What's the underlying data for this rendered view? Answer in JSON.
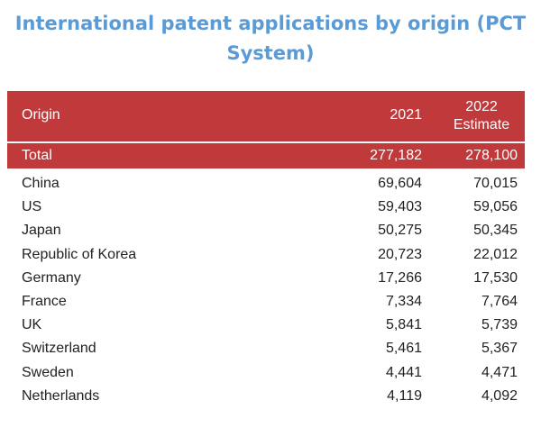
{
  "title": {
    "line1": "International patent applications by origin (PCT",
    "line2": "System)"
  },
  "table": {
    "headers": {
      "origin": "Origin",
      "y2021": "2021",
      "y2022_line1": "2022",
      "y2022_line2": "Estimate"
    },
    "total": {
      "origin": "Total",
      "y2021": "277,182",
      "y2022": "278,100"
    },
    "rows": [
      {
        "origin": "China",
        "y2021": "69,604",
        "y2022": "70,015"
      },
      {
        "origin": "US",
        "y2021": "59,403",
        "y2022": "59,056"
      },
      {
        "origin": "Japan",
        "y2021": "50,275",
        "y2022": "50,345"
      },
      {
        "origin": "Republic of Korea",
        "y2021": "20,723",
        "y2022": "22,012"
      },
      {
        "origin": "Germany",
        "y2021": "17,266",
        "y2022": "17,530"
      },
      {
        "origin": "France",
        "y2021": "7,334",
        "y2022": "7,764"
      },
      {
        "origin": "UK",
        "y2021": "5,841",
        "y2022": "5,739"
      },
      {
        "origin": "Switzerland",
        "y2021": "5,461",
        "y2022": "5,367"
      },
      {
        "origin": "Sweden",
        "y2021": "4,441",
        "y2022": "4,471"
      },
      {
        "origin": "Netherlands",
        "y2021": "4,119",
        "y2022": "4,092"
      }
    ]
  },
  "colors": {
    "title": "#5b9bd5",
    "header_bg": "#c0393b",
    "header_text": "#ffffff",
    "body_text": "#222222"
  }
}
